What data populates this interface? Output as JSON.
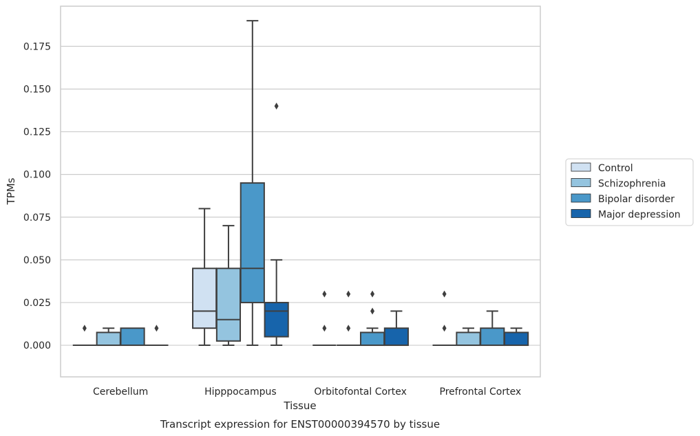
{
  "chart_data": {
    "type": "box",
    "title": "Transcript expression for ENST00000394570 by tissue",
    "xlabel": "Tissue",
    "ylabel": "TPMs",
    "ylim": [
      -0.0185,
      0.1985
    ],
    "yticks": [
      0.0,
      0.025,
      0.05,
      0.075,
      0.1,
      0.125,
      0.15,
      0.175
    ],
    "ytick_labels": [
      "0.000",
      "0.025",
      "0.050",
      "0.075",
      "0.100",
      "0.125",
      "0.150",
      "0.175"
    ],
    "grid": "horizontal",
    "legend_position": "right",
    "categories": [
      "Cerebellum",
      "Hipppocampus",
      "Orbitofontal Cortex",
      "Prefrontal Cortex"
    ],
    "series": [
      {
        "name": "Control",
        "color": "#d0e1f2",
        "boxes": [
          {
            "whislo": 0.0,
            "q1": 0.0,
            "med": 0.0,
            "q3": 0.0,
            "whishi": 0.0,
            "fliers": [
              0.01
            ]
          },
          {
            "whislo": 0.0,
            "q1": 0.01,
            "med": 0.02,
            "q3": 0.045,
            "whishi": 0.08,
            "fliers": []
          },
          {
            "whislo": 0.0,
            "q1": 0.0,
            "med": 0.0,
            "q3": 0.0,
            "whishi": 0.0,
            "fliers": [
              0.01,
              0.03
            ]
          },
          {
            "whislo": 0.0,
            "q1": 0.0,
            "med": 0.0,
            "q3": 0.0,
            "whishi": 0.0,
            "fliers": [
              0.01,
              0.03
            ]
          }
        ]
      },
      {
        "name": "Schizophrenia",
        "color": "#94c4df",
        "boxes": [
          {
            "whislo": 0.0,
            "q1": 0.0,
            "med": 0.0,
            "q3": 0.0075,
            "whishi": 0.01,
            "fliers": []
          },
          {
            "whislo": 0.0,
            "q1": 0.0025,
            "med": 0.015,
            "q3": 0.045,
            "whishi": 0.07,
            "fliers": []
          },
          {
            "whislo": 0.0,
            "q1": 0.0,
            "med": 0.0,
            "q3": 0.0,
            "whishi": 0.0,
            "fliers": [
              0.01,
              0.03
            ]
          },
          {
            "whislo": 0.0,
            "q1": 0.0,
            "med": 0.0,
            "q3": 0.0075,
            "whishi": 0.01,
            "fliers": []
          }
        ]
      },
      {
        "name": "Bipolar disorder",
        "color": "#4a98c9",
        "boxes": [
          {
            "whislo": 0.0,
            "q1": 0.0,
            "med": 0.0,
            "q3": 0.01,
            "whishi": 0.01,
            "fliers": []
          },
          {
            "whislo": 0.0,
            "q1": 0.025,
            "med": 0.045,
            "q3": 0.095,
            "whishi": 0.19,
            "fliers": []
          },
          {
            "whislo": 0.0,
            "q1": 0.0,
            "med": 0.0,
            "q3": 0.0075,
            "whishi": 0.01,
            "fliers": [
              0.02,
              0.03
            ]
          },
          {
            "whislo": 0.0,
            "q1": 0.0,
            "med": 0.0,
            "q3": 0.01,
            "whishi": 0.02,
            "fliers": []
          }
        ]
      },
      {
        "name": "Major depression",
        "color": "#1764ab",
        "boxes": [
          {
            "whislo": 0.0,
            "q1": 0.0,
            "med": 0.0,
            "q3": 0.0,
            "whishi": 0.0,
            "fliers": [
              0.01
            ]
          },
          {
            "whislo": 0.0,
            "q1": 0.005,
            "med": 0.02,
            "q3": 0.025,
            "whishi": 0.05,
            "fliers": [
              0.14
            ]
          },
          {
            "whislo": 0.0,
            "q1": 0.0,
            "med": 0.0,
            "q3": 0.01,
            "whishi": 0.02,
            "fliers": []
          },
          {
            "whislo": 0.0,
            "q1": 0.0,
            "med": 0.0,
            "q3": 0.0075,
            "whishi": 0.01,
            "fliers": []
          }
        ]
      }
    ]
  }
}
